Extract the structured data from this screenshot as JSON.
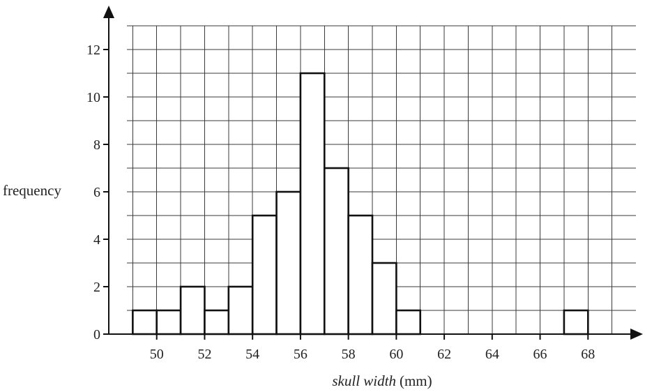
{
  "chart_data": {
    "type": "bar",
    "subtype": "histogram",
    "title": "",
    "ylabel": "frequency",
    "xlabel_italic": "skull width",
    "xlabel_unit": "(mm)",
    "xlim": [
      48,
      70
    ],
    "ylim": [
      0,
      13
    ],
    "x_ticks": [
      50,
      52,
      54,
      56,
      58,
      60,
      62,
      64,
      66,
      68
    ],
    "y_ticks": [
      0,
      2,
      4,
      6,
      8,
      10,
      12
    ],
    "x_gridlines": [
      49,
      50,
      51,
      52,
      53,
      54,
      55,
      56,
      57,
      58,
      59,
      60,
      61,
      62,
      63,
      64,
      65,
      66,
      67,
      68,
      69
    ],
    "y_gridlines": [
      1,
      2,
      3,
      4,
      5,
      6,
      7,
      8,
      9,
      10,
      11,
      12,
      13
    ],
    "grid": true,
    "bins": [
      {
        "start": 49,
        "end": 50,
        "frequency": 1
      },
      {
        "start": 50,
        "end": 51,
        "frequency": 1
      },
      {
        "start": 51,
        "end": 52,
        "frequency": 2
      },
      {
        "start": 52,
        "end": 53,
        "frequency": 1
      },
      {
        "start": 53,
        "end": 54,
        "frequency": 2
      },
      {
        "start": 54,
        "end": 55,
        "frequency": 5
      },
      {
        "start": 55,
        "end": 56,
        "frequency": 6
      },
      {
        "start": 56,
        "end": 57,
        "frequency": 11
      },
      {
        "start": 57,
        "end": 58,
        "frequency": 7
      },
      {
        "start": 58,
        "end": 59,
        "frequency": 5
      },
      {
        "start": 59,
        "end": 60,
        "frequency": 3
      },
      {
        "start": 60,
        "end": 61,
        "frequency": 1
      },
      {
        "start": 67,
        "end": 68,
        "frequency": 1
      }
    ]
  }
}
